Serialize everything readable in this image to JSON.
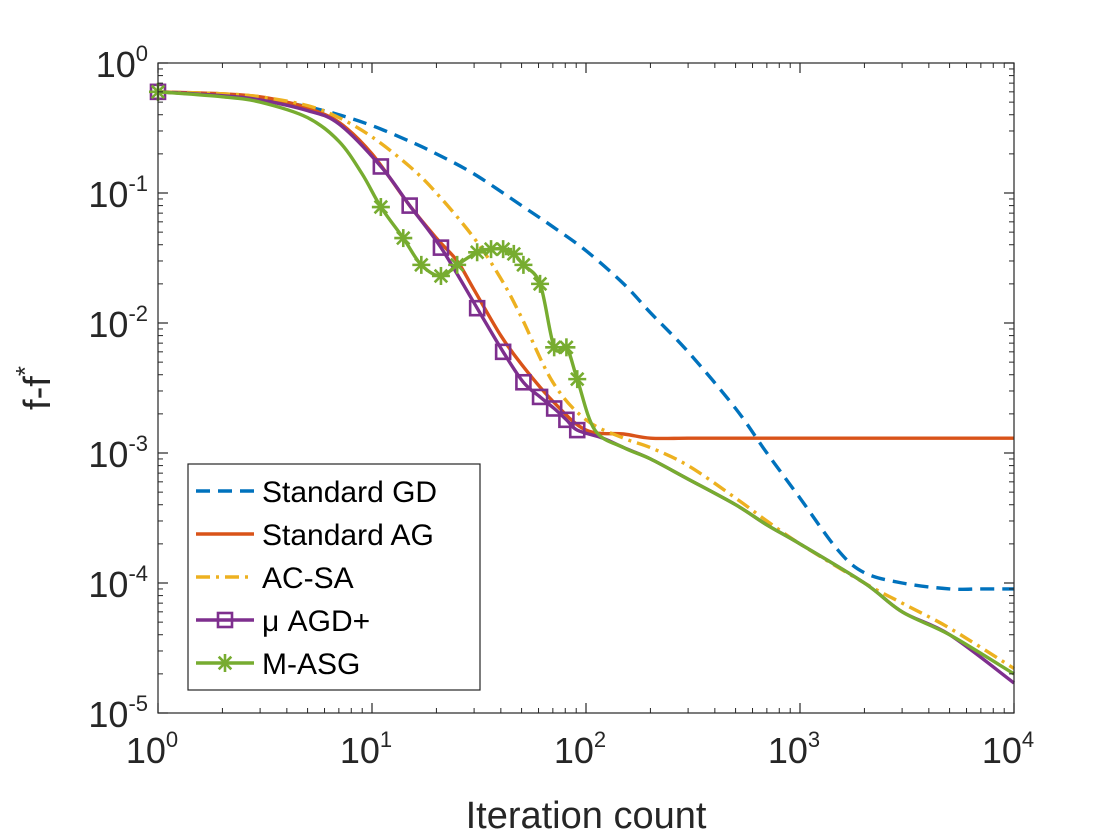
{
  "chart_data": {
    "type": "line",
    "title": "",
    "xlabel": "Iteration count",
    "ylabel": "f-f*",
    "ylabel_main": "f-f",
    "ylabel_sup": "*",
    "xscale": "log",
    "yscale": "log",
    "xlim": [
      1,
      10000
    ],
    "ylim": [
      1e-05,
      1
    ],
    "x_ticks": [
      {
        "base": "10",
        "exp": "0"
      },
      {
        "base": "10",
        "exp": "1"
      },
      {
        "base": "10",
        "exp": "2"
      },
      {
        "base": "10",
        "exp": "3"
      },
      {
        "base": "10",
        "exp": "4"
      }
    ],
    "y_ticks": [
      {
        "base": "10",
        "exp": "0"
      },
      {
        "base": "10",
        "exp": "-1"
      },
      {
        "base": "10",
        "exp": "-2"
      },
      {
        "base": "10",
        "exp": "-3"
      },
      {
        "base": "10",
        "exp": "-4"
      },
      {
        "base": "10",
        "exp": "-5"
      }
    ],
    "legend_position": "bottom-left",
    "series": [
      {
        "name": "Standard GD",
        "color": "#0072BD",
        "style": "dashed",
        "marker": "none",
        "x": [
          1,
          2,
          3,
          5,
          7,
          10,
          15,
          20,
          30,
          50,
          70,
          100,
          150,
          200,
          300,
          500,
          700,
          1000,
          1500,
          2000,
          3000,
          5000,
          7000,
          10000
        ],
        "y": [
          0.6,
          0.57,
          0.54,
          0.46,
          0.4,
          0.33,
          0.25,
          0.2,
          0.14,
          0.08,
          0.055,
          0.036,
          0.02,
          0.012,
          0.006,
          0.0022,
          0.001,
          0.00045,
          0.00018,
          0.00012,
          0.0001,
          9e-05,
          9e-05,
          9e-05
        ]
      },
      {
        "name": "Standard AG",
        "color": "#D95319",
        "style": "solid",
        "marker": "none",
        "x": [
          1,
          2,
          3,
          4,
          5,
          7,
          10,
          15,
          20,
          25,
          30,
          40,
          50,
          70,
          100,
          150,
          200,
          300,
          500,
          1000,
          2000,
          5000,
          10000
        ],
        "y": [
          0.6,
          0.58,
          0.55,
          0.5,
          0.45,
          0.35,
          0.2,
          0.08,
          0.045,
          0.03,
          0.018,
          0.008,
          0.0048,
          0.0025,
          0.0015,
          0.0014,
          0.0013,
          0.0013,
          0.0013,
          0.0013,
          0.0013,
          0.0013,
          0.0013
        ]
      },
      {
        "name": "AC-SA",
        "color": "#EDB120",
        "style": "dashdot",
        "marker": "none",
        "x": [
          1,
          2,
          3,
          5,
          7,
          10,
          15,
          20,
          30,
          40,
          50,
          70,
          100,
          150,
          200,
          300,
          500,
          700,
          1000,
          2000,
          3000,
          5000,
          10000
        ],
        "y": [
          0.6,
          0.58,
          0.55,
          0.47,
          0.38,
          0.27,
          0.16,
          0.1,
          0.045,
          0.022,
          0.011,
          0.0035,
          0.0018,
          0.0013,
          0.0011,
          0.0008,
          0.00045,
          0.0003,
          0.0002,
          0.0001,
          7e-05,
          4.5e-05,
          2.2e-05
        ]
      },
      {
        "name": "μ AGD+",
        "color": "#7E2F8E",
        "style": "solid",
        "marker": "square",
        "x": [
          1,
          2,
          3,
          5,
          7,
          11,
          15,
          21,
          31,
          41,
          51,
          61,
          71,
          81,
          91,
          120,
          150,
          200,
          300,
          500,
          700,
          1000,
          2000,
          3000,
          5000,
          10000
        ],
        "y": [
          0.6,
          0.56,
          0.52,
          0.43,
          0.34,
          0.16,
          0.08,
          0.038,
          0.013,
          0.006,
          0.0035,
          0.0027,
          0.0022,
          0.0018,
          0.0015,
          0.0013,
          0.0011,
          0.0009,
          0.00063,
          0.0004,
          0.00028,
          0.0002,
          0.0001,
          6e-05,
          4e-05,
          1.7e-05
        ]
      },
      {
        "name": "M-ASG",
        "color": "#77AC30",
        "style": "solid",
        "marker": "asterisk",
        "x": [
          1,
          2,
          3,
          5,
          7,
          9,
          11,
          14,
          17,
          21,
          25,
          31,
          36,
          41,
          46,
          51,
          61,
          71,
          81,
          91,
          110,
          150,
          200,
          300,
          500,
          700,
          1000,
          2000,
          3000,
          5000,
          10000
        ],
        "y": [
          0.6,
          0.55,
          0.5,
          0.38,
          0.25,
          0.14,
          0.078,
          0.045,
          0.028,
          0.023,
          0.028,
          0.035,
          0.037,
          0.037,
          0.034,
          0.028,
          0.02,
          0.0065,
          0.0065,
          0.0037,
          0.0015,
          0.0011,
          0.0009,
          0.00063,
          0.0004,
          0.00028,
          0.0002,
          0.0001,
          6e-05,
          4e-05,
          2e-05
        ]
      }
    ]
  }
}
